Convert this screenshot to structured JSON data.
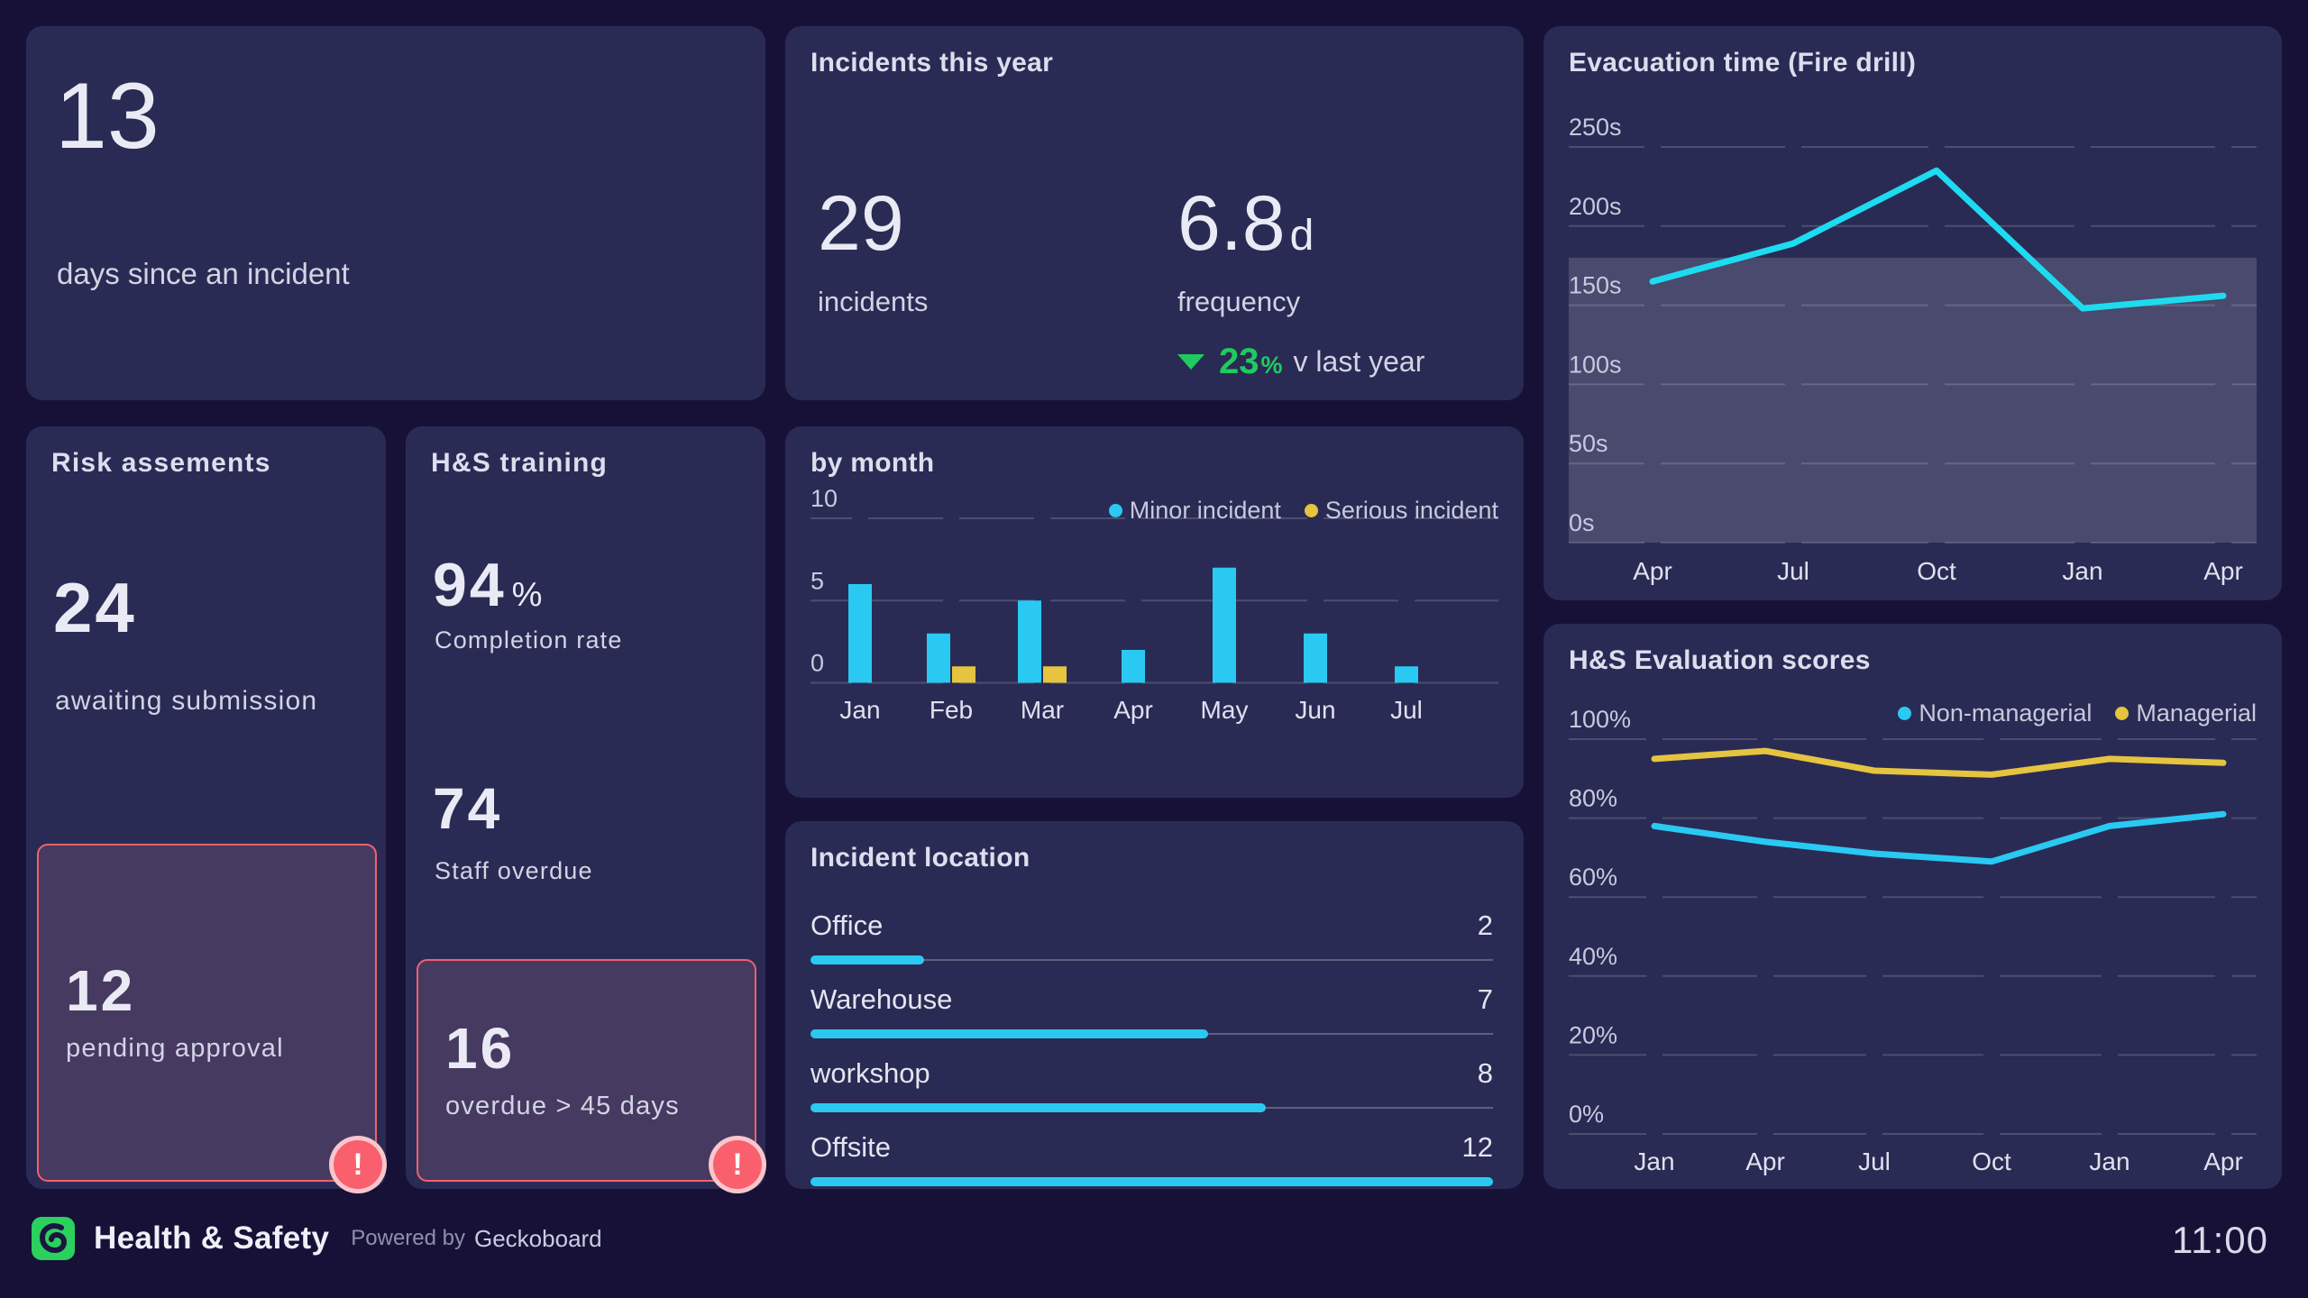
{
  "colors": {
    "background": "#171138",
    "card": "#2a2b54",
    "accent_cyan": "#29c9f2",
    "accent_cyan_bright": "#1edbf0",
    "accent_yellow": "#e5c43f",
    "green": "#1fcb5e",
    "alert_red": "#fa5f6e",
    "alert_border": "#f4606d"
  },
  "cards": {
    "days_since": {
      "value": "13",
      "label": "days since an incident"
    },
    "incidents_year": {
      "title": "Incidents this year",
      "count": "29",
      "count_label": "incidents",
      "frequency_value": "6.8",
      "frequency_unit": "d",
      "frequency_label": "frequency",
      "change_value": "23",
      "change_unit": "%",
      "change_label": "v last year"
    },
    "risk": {
      "title": "Risk assements",
      "value": "24",
      "label": "awaiting submission",
      "alert_value": "12",
      "alert_label": "pending approval",
      "alert_icon": "!"
    },
    "training": {
      "title": "H&S training",
      "completion_value": "94",
      "completion_unit": "%",
      "completion_label": "Completion rate",
      "overdue_value": "74",
      "overdue_label": "Staff overdue",
      "alert_value": "16",
      "alert_label": "overdue > 45 days",
      "alert_icon": "!"
    }
  },
  "chart_data": [
    {
      "id": "evacuation",
      "type": "line",
      "title": "Evacuation time (Fire drill)",
      "x": [
        "Apr",
        "Jul",
        "Oct",
        "Jan",
        "Apr"
      ],
      "series": [
        {
          "name": "Evacuation time",
          "color": "#1edbf0",
          "values": [
            165,
            189,
            235,
            148,
            156
          ]
        }
      ],
      "ylim": [
        0,
        250
      ],
      "ytick": 50,
      "unit": "s",
      "goal_band": [
        0,
        180
      ],
      "grid": true,
      "legend": false
    },
    {
      "id": "by_month",
      "type": "bar",
      "title": "by month",
      "x": [
        "Jan",
        "Feb",
        "Mar",
        "Apr",
        "May",
        "Jun",
        "Jul"
      ],
      "series": [
        {
          "name": "Minor incident",
          "color": "#29c9f2",
          "values": [
            6,
            3,
            5,
            2,
            7,
            3,
            1
          ]
        },
        {
          "name": "Serious incident",
          "color": "#e5c43f",
          "values": [
            0,
            1,
            1,
            0,
            0,
            0,
            0
          ]
        }
      ],
      "ylim": [
        0,
        10
      ],
      "ytick": 5,
      "unit": "",
      "grid": true,
      "legend": true,
      "legend_position": "top-right"
    },
    {
      "id": "location",
      "type": "hbar",
      "title": "Incident location",
      "rows": [
        {
          "label": "Office",
          "value": 2
        },
        {
          "label": "Warehouse",
          "value": 7
        },
        {
          "label": "workshop",
          "value": 8
        },
        {
          "label": "Offsite",
          "value": 12
        }
      ],
      "max": 12,
      "bar_color": "#29c9f2"
    },
    {
      "id": "evaluation",
      "type": "line",
      "title": "H&S Evaluation scores",
      "x": [
        "Jan",
        "Apr",
        "Jul",
        "Oct",
        "Jan",
        "Apr"
      ],
      "series": [
        {
          "name": "Non-managerial",
          "color": "#29c9f2",
          "values": [
            78,
            74,
            71,
            69,
            78,
            81
          ]
        },
        {
          "name": "Managerial",
          "color": "#e5c43f",
          "values": [
            95,
            97,
            92,
            91,
            95,
            94
          ]
        }
      ],
      "ylim": [
        0,
        100
      ],
      "ytick": 20,
      "unit": "%",
      "grid": true,
      "legend": true,
      "legend_position": "top-right"
    }
  ],
  "footer": {
    "brand": "Health & Safety",
    "powered_by": "Powered by",
    "powered_brand": "Geckoboard",
    "clock": "11:00"
  }
}
